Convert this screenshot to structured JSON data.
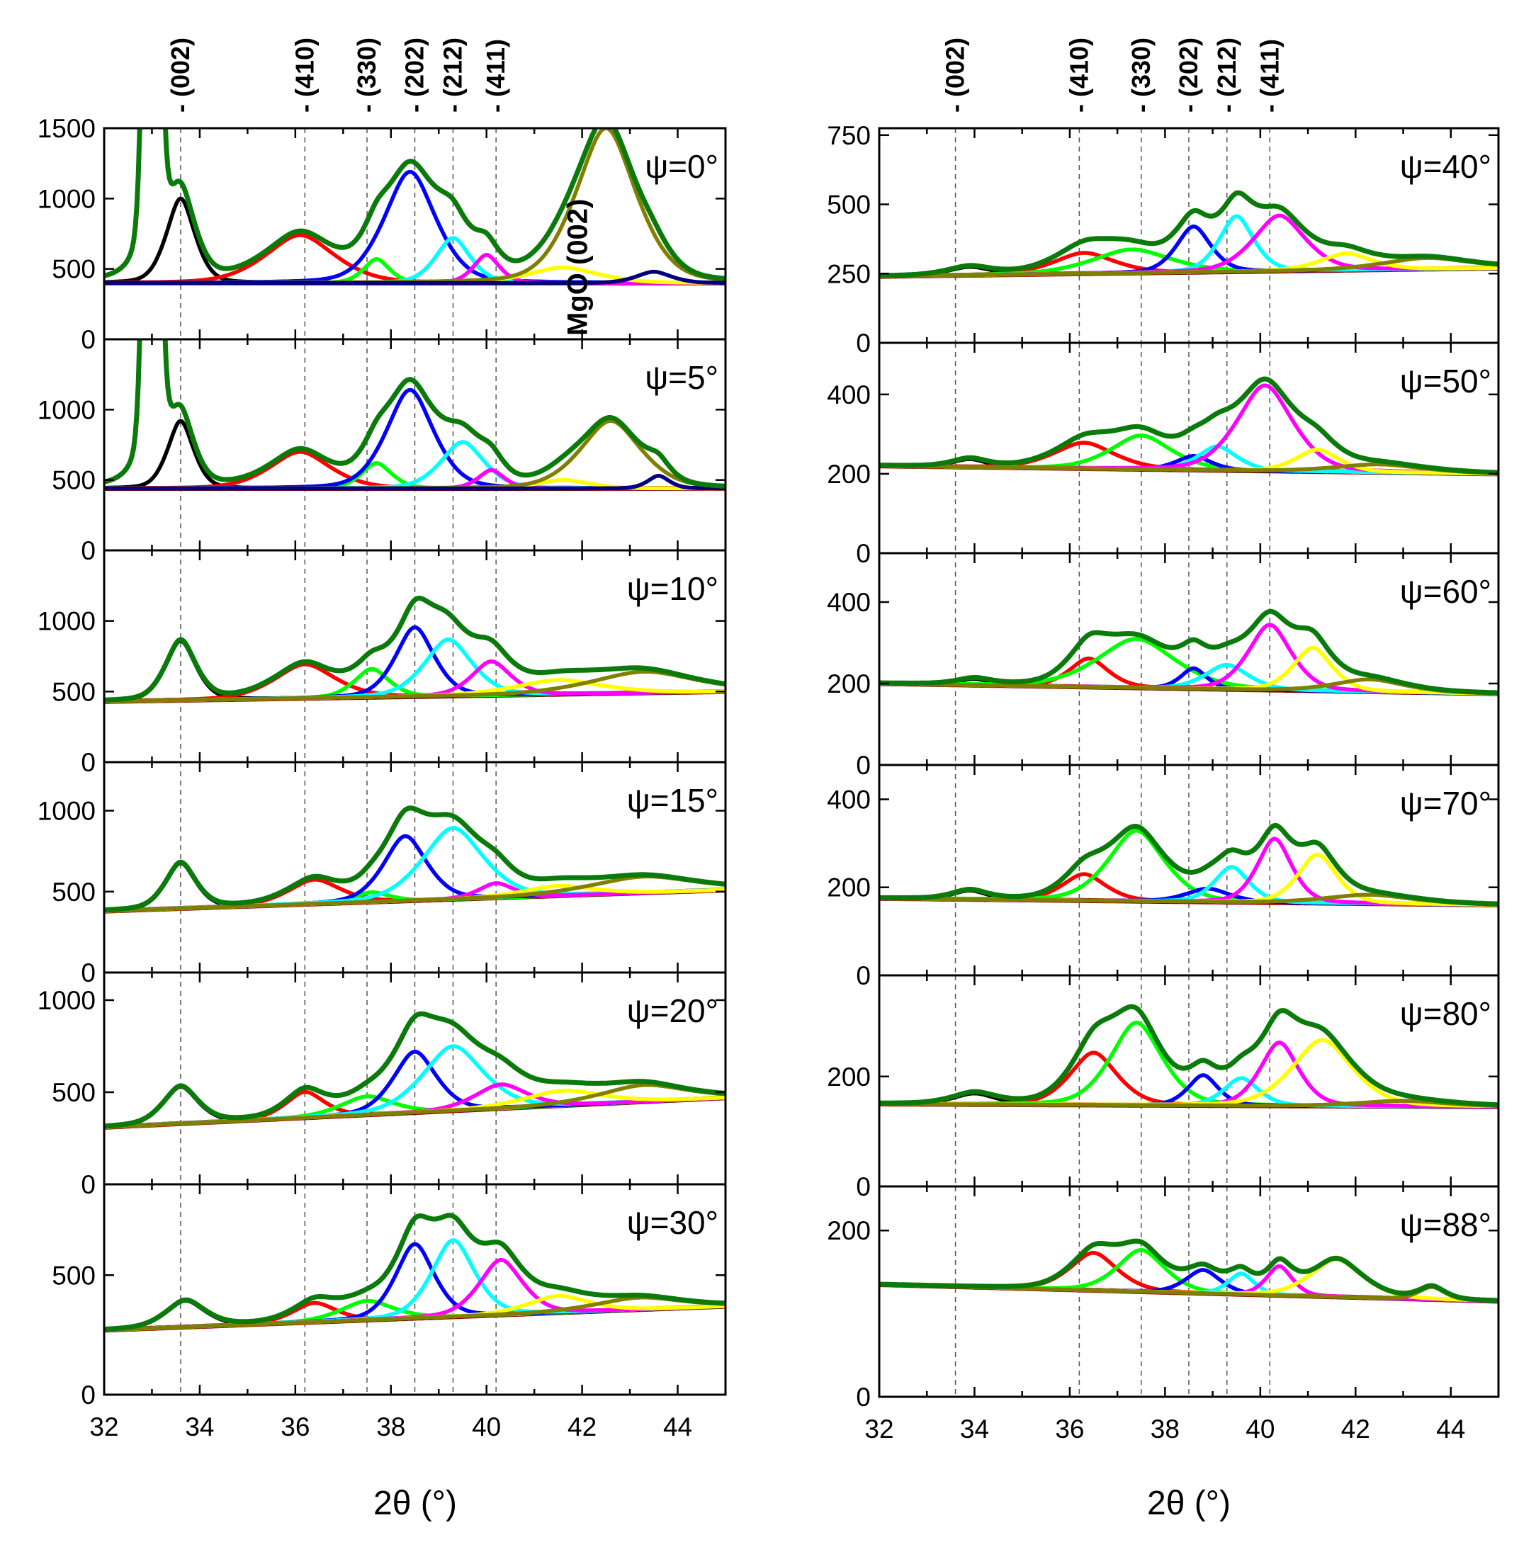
{
  "chart_data": {
    "type": "line",
    "xlabel": "2θ (°)",
    "xlim": [
      32,
      45
    ],
    "xticks": [
      32,
      34,
      36,
      38,
      40,
      42,
      44
    ],
    "peak_labels": [
      {
        "label": "(002)",
        "x": 33.6
      },
      {
        "label": "(410)",
        "x": 36.2
      },
      {
        "label": "(330)",
        "x": 37.5
      },
      {
        "label": "(202)",
        "x": 38.5
      },
      {
        "label": "(212)",
        "x": 39.3
      },
      {
        "label": "(411)",
        "x": 40.2
      }
    ],
    "annotation": "MgO (002)",
    "colors": {
      "p002": "#000000",
      "p410": "#ff0000",
      "p330": "#00ff00",
      "p202": "#0000ff",
      "p212": "#00ffff",
      "p411": "#ff00ff",
      "yellow": "#ffff00",
      "mgo": "#808000",
      "navy": "#000080",
      "envelope": "#0a7a0a",
      "baseline": "#8b0000"
    },
    "columns": [
      {
        "panels": [
          {
            "label": "ψ=0°",
            "ylim": [
              0,
              1500
            ],
            "yticks": [
              0,
              500,
              1000,
              1500
            ],
            "baseline": [
              400,
              400
            ],
            "peaks": [
              [
                "sub",
                33.0,
                9000,
                0.12
              ],
              [
                "p002",
                33.6,
                600,
                0.33
              ],
              [
                "p410",
                36.1,
                340,
                0.8
              ],
              [
                "p330",
                37.7,
                170,
                0.3
              ],
              [
                "p202",
                38.4,
                790,
                0.6
              ],
              [
                "p212",
                39.3,
                320,
                0.4
              ],
              [
                "p411",
                40.0,
                200,
                0.3
              ],
              [
                "yellow",
                41.6,
                110,
                0.8
              ],
              [
                "mgo",
                42.5,
                1100,
                0.7
              ],
              [
                "navy",
                43.5,
                80,
                0.4
              ]
            ]
          },
          {
            "label": "ψ=5°",
            "ylim": [
              0,
              1500
            ],
            "yticks": [
              0,
              500,
              1000
            ],
            "baseline": [
              440,
              440
            ],
            "peaks": [
              [
                "sub",
                33.0,
                9000,
                0.12
              ],
              [
                "p002",
                33.6,
                480,
                0.3
              ],
              [
                "p410",
                36.1,
                260,
                0.7
              ],
              [
                "p330",
                37.7,
                180,
                0.35
              ],
              [
                "p202",
                38.4,
                700,
                0.55
              ],
              [
                "p212",
                39.5,
                330,
                0.5
              ],
              [
                "p411",
                40.1,
                130,
                0.3
              ],
              [
                "yellow",
                41.6,
                60,
                0.6
              ],
              [
                "mgo",
                42.6,
                480,
                0.7
              ],
              [
                "navy",
                43.6,
                90,
                0.25
              ]
            ]
          },
          {
            "label": "ψ=10°",
            "ylim": [
              0,
              1500
            ],
            "yticks": [
              0,
              500,
              1000
            ],
            "baseline": [
              430,
              500
            ],
            "peaks": [
              [
                "p002",
                33.6,
                420,
                0.35
              ],
              [
                "p410",
                36.2,
                240,
                0.7
              ],
              [
                "p330",
                37.6,
                200,
                0.4
              ],
              [
                "p202",
                38.5,
                490,
                0.45
              ],
              [
                "p212",
                39.2,
                400,
                0.55
              ],
              [
                "p411",
                40.1,
                240,
                0.45
              ],
              [
                "yellow",
                41.5,
                100,
                1.0
              ],
              [
                "mgo",
                43.3,
                150,
                1.2
              ]
            ]
          },
          {
            "label": "ψ=15°",
            "ylim": [
              0,
              1300
            ],
            "yticks": [
              0,
              500,
              1000
            ],
            "baseline": [
              380,
              510
            ],
            "peaks": [
              [
                "p002",
                33.6,
                280,
                0.35
              ],
              [
                "p410",
                36.4,
                150,
                0.6
              ],
              [
                "p330",
                37.6,
                60,
                0.4
              ],
              [
                "p202",
                38.3,
                400,
                0.5
              ],
              [
                "p212",
                39.3,
                440,
                0.7
              ],
              [
                "p411",
                40.2,
                90,
                0.4
              ],
              [
                "yellow",
                41.5,
                60,
                0.8
              ],
              [
                "mgo",
                43.3,
                100,
                1.2
              ]
            ]
          },
          {
            "label": "ψ=20°",
            "ylim": [
              0,
              1150
            ],
            "yticks": [
              0,
              500,
              1000
            ],
            "baseline": [
              310,
              470
            ],
            "peaks": [
              [
                "p002",
                33.6,
                200,
                0.4
              ],
              [
                "p410",
                36.2,
                140,
                0.45
              ],
              [
                "p330",
                37.5,
                100,
                0.6
              ],
              [
                "p202",
                38.5,
                330,
                0.5
              ],
              [
                "p212",
                39.3,
                350,
                0.7
              ],
              [
                "p411",
                40.3,
                130,
                0.6
              ],
              [
                "yellow",
                41.6,
                80,
                0.9
              ],
              [
                "mgo",
                43.3,
                90,
                1.0
              ]
            ]
          },
          {
            "label": "ψ=30°",
            "ylim": [
              0,
              880
            ],
            "yticks": [
              0,
              500
            ],
            "baseline": [
              270,
              370
            ],
            "peaks": [
              [
                "p002",
                33.7,
                110,
                0.45
              ],
              [
                "p410",
                36.4,
                80,
                0.5
              ],
              [
                "p330",
                37.5,
                80,
                0.6
              ],
              [
                "p202",
                38.5,
                310,
                0.45
              ],
              [
                "p212",
                39.3,
                320,
                0.5
              ],
              [
                "p411",
                40.3,
                230,
                0.5
              ],
              [
                "yellow",
                41.5,
                70,
                0.7
              ],
              [
                "mgo",
                43.2,
                50,
                1.0
              ]
            ]
          }
        ]
      },
      {
        "panels": [
          {
            "label": "ψ=40°",
            "ylim": [
              0,
              775
            ],
            "yticks": [
              0,
              250,
              500,
              750
            ],
            "baseline": [
              240,
              270
            ],
            "peaks": [
              [
                "p002",
                33.9,
                30,
                0.5
              ],
              [
                "p410",
                36.3,
                75,
                0.7
              ],
              [
                "p330",
                37.3,
                85,
                0.9
              ],
              [
                "p202",
                38.6,
                165,
                0.4
              ],
              [
                "p212",
                39.5,
                200,
                0.4
              ],
              [
                "p411",
                40.4,
                200,
                0.6
              ],
              [
                "yellow",
                41.8,
                60,
                0.6
              ],
              [
                "mgo",
                43.5,
                40,
                1.0
              ]
            ]
          },
          {
            "label": "ψ=50°",
            "ylim": [
              0,
              530
            ],
            "yticks": [
              0,
              200,
              400
            ],
            "baseline": [
              220,
              200
            ],
            "peaks": [
              [
                "p002",
                33.9,
                20,
                0.4
              ],
              [
                "p410",
                36.3,
                65,
                0.7
              ],
              [
                "p330",
                37.5,
                85,
                0.7
              ],
              [
                "p202",
                38.6,
                35,
                0.4
              ],
              [
                "p212",
                39.1,
                60,
                0.45
              ],
              [
                "p411",
                40.1,
                215,
                0.65
              ],
              [
                "yellow",
                41.2,
                55,
                0.5
              ],
              [
                "mgo",
                42.5,
                20,
                1.0
              ]
            ]
          },
          {
            "label": "ψ=60°",
            "ylim": [
              0,
              520
            ],
            "yticks": [
              0,
              200,
              400
            ],
            "baseline": [
              200,
              175
            ],
            "peaks": [
              [
                "p002",
                34.0,
                15,
                0.4
              ],
              [
                "p410",
                36.4,
                70,
                0.45
              ],
              [
                "p330",
                37.4,
                120,
                0.9
              ],
              [
                "p202",
                38.6,
                50,
                0.3
              ],
              [
                "p212",
                39.3,
                60,
                0.5
              ],
              [
                "p411",
                40.2,
                160,
                0.5
              ],
              [
                "yellow",
                41.1,
                105,
                0.45
              ],
              [
                "mgo",
                42.3,
                30,
                0.8
              ]
            ]
          },
          {
            "label": "ψ=70°",
            "ylim": [
              0,
              478
            ],
            "yticks": [
              0,
              200,
              400
            ],
            "baseline": [
              175,
              160
            ],
            "peaks": [
              [
                "p002",
                33.9,
                20,
                0.4
              ],
              [
                "p410",
                36.3,
                60,
                0.5
              ],
              [
                "p330",
                37.4,
                160,
                0.65
              ],
              [
                "p202",
                38.9,
                30,
                0.5
              ],
              [
                "p212",
                39.4,
                80,
                0.4
              ],
              [
                "p411",
                40.3,
                145,
                0.4
              ],
              [
                "yellow",
                41.2,
                110,
                0.45
              ],
              [
                "mgo",
                42.3,
                20,
                1.0
              ]
            ]
          },
          {
            "label": "ψ=80°",
            "ylim": [
              0,
              384
            ],
            "yticks": [
              0,
              200
            ],
            "baseline": [
              150,
              145
            ],
            "peaks": [
              [
                "p002",
                34.0,
                20,
                0.5
              ],
              [
                "p410",
                36.5,
                95,
                0.55
              ],
              [
                "p330",
                37.4,
                150,
                0.6
              ],
              [
                "p202",
                38.8,
                55,
                0.35
              ],
              [
                "p212",
                39.6,
                50,
                0.4
              ],
              [
                "p411",
                40.4,
                115,
                0.45
              ],
              [
                "yellow",
                41.3,
                120,
                0.7
              ],
              [
                "mgo",
                43.0,
                10,
                1.0
              ]
            ]
          },
          {
            "label": "ψ=88°",
            "ylim": [
              0,
              253
            ],
            "yticks": [
              0,
              200
            ],
            "baseline": [
              135,
              115
            ],
            "peaks": [
              [
                "p410",
                36.5,
                45,
                0.55
              ],
              [
                "p330",
                37.5,
                50,
                0.55
              ],
              [
                "p202",
                38.8,
                28,
                0.4
              ],
              [
                "p212",
                39.6,
                25,
                0.3
              ],
              [
                "p411",
                40.4,
                35,
                0.3
              ],
              [
                "yellow",
                41.6,
                45,
                0.6
              ],
              [
                "mgo",
                43.6,
                15,
                0.3
              ]
            ]
          }
        ]
      }
    ]
  }
}
